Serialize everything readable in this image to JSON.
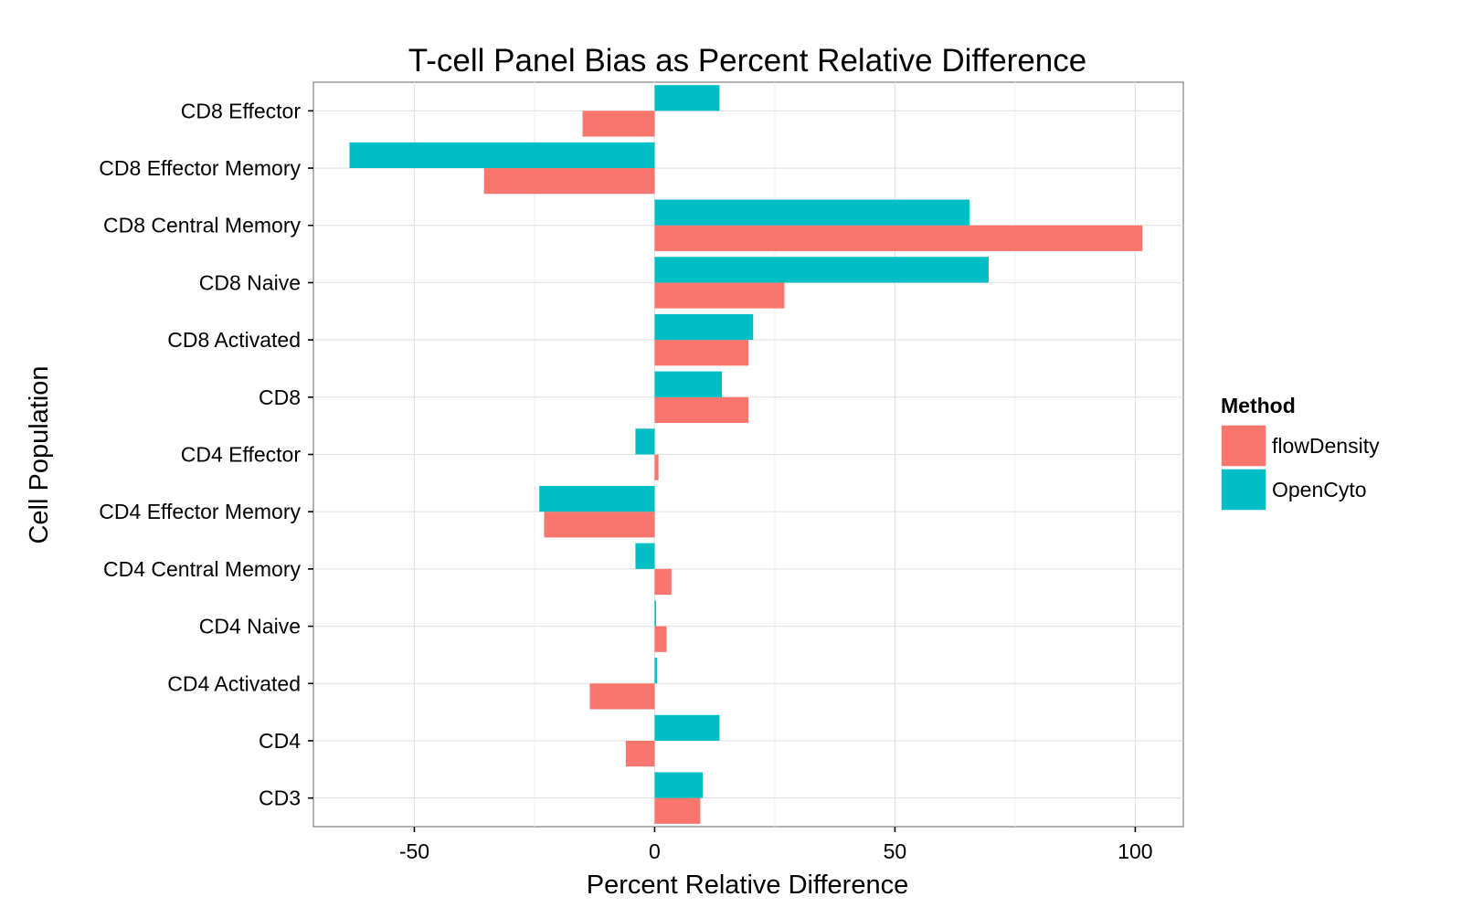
{
  "chart_data": {
    "type": "bar",
    "orientation": "horizontal",
    "title": "T-cell Panel Bias as Percent Relative Difference",
    "xlabel": "Percent Relative Difference",
    "ylabel": "Cell Population",
    "xlim": [
      -71,
      110
    ],
    "xticks": [
      -50,
      0,
      50,
      100
    ],
    "grid": true,
    "legend_position": "right",
    "legend_title": "Method",
    "categories": [
      "CD8 Effector",
      "CD8 Effector Memory",
      "CD8 Central Memory",
      "CD8 Naive",
      "CD8 Activated",
      "CD8",
      "CD4 Effector",
      "CD4 Effector Memory",
      "CD4 Central Memory",
      "CD4 Naive",
      "CD4 Activated",
      "CD4",
      "CD3"
    ],
    "series": [
      {
        "name": "flowDensity",
        "color": "#F8766D",
        "values": [
          -15,
          -35.5,
          101.5,
          27,
          19.5,
          19.5,
          0.8,
          -23,
          3.5,
          2.5,
          -13.5,
          -6,
          9.5
        ]
      },
      {
        "name": "OpenCyto",
        "color": "#00BFC4",
        "values": [
          13.5,
          -63.5,
          65.5,
          69.5,
          20.5,
          14,
          -4,
          -24,
          -4,
          0.3,
          0.5,
          13.5,
          10
        ]
      }
    ]
  }
}
